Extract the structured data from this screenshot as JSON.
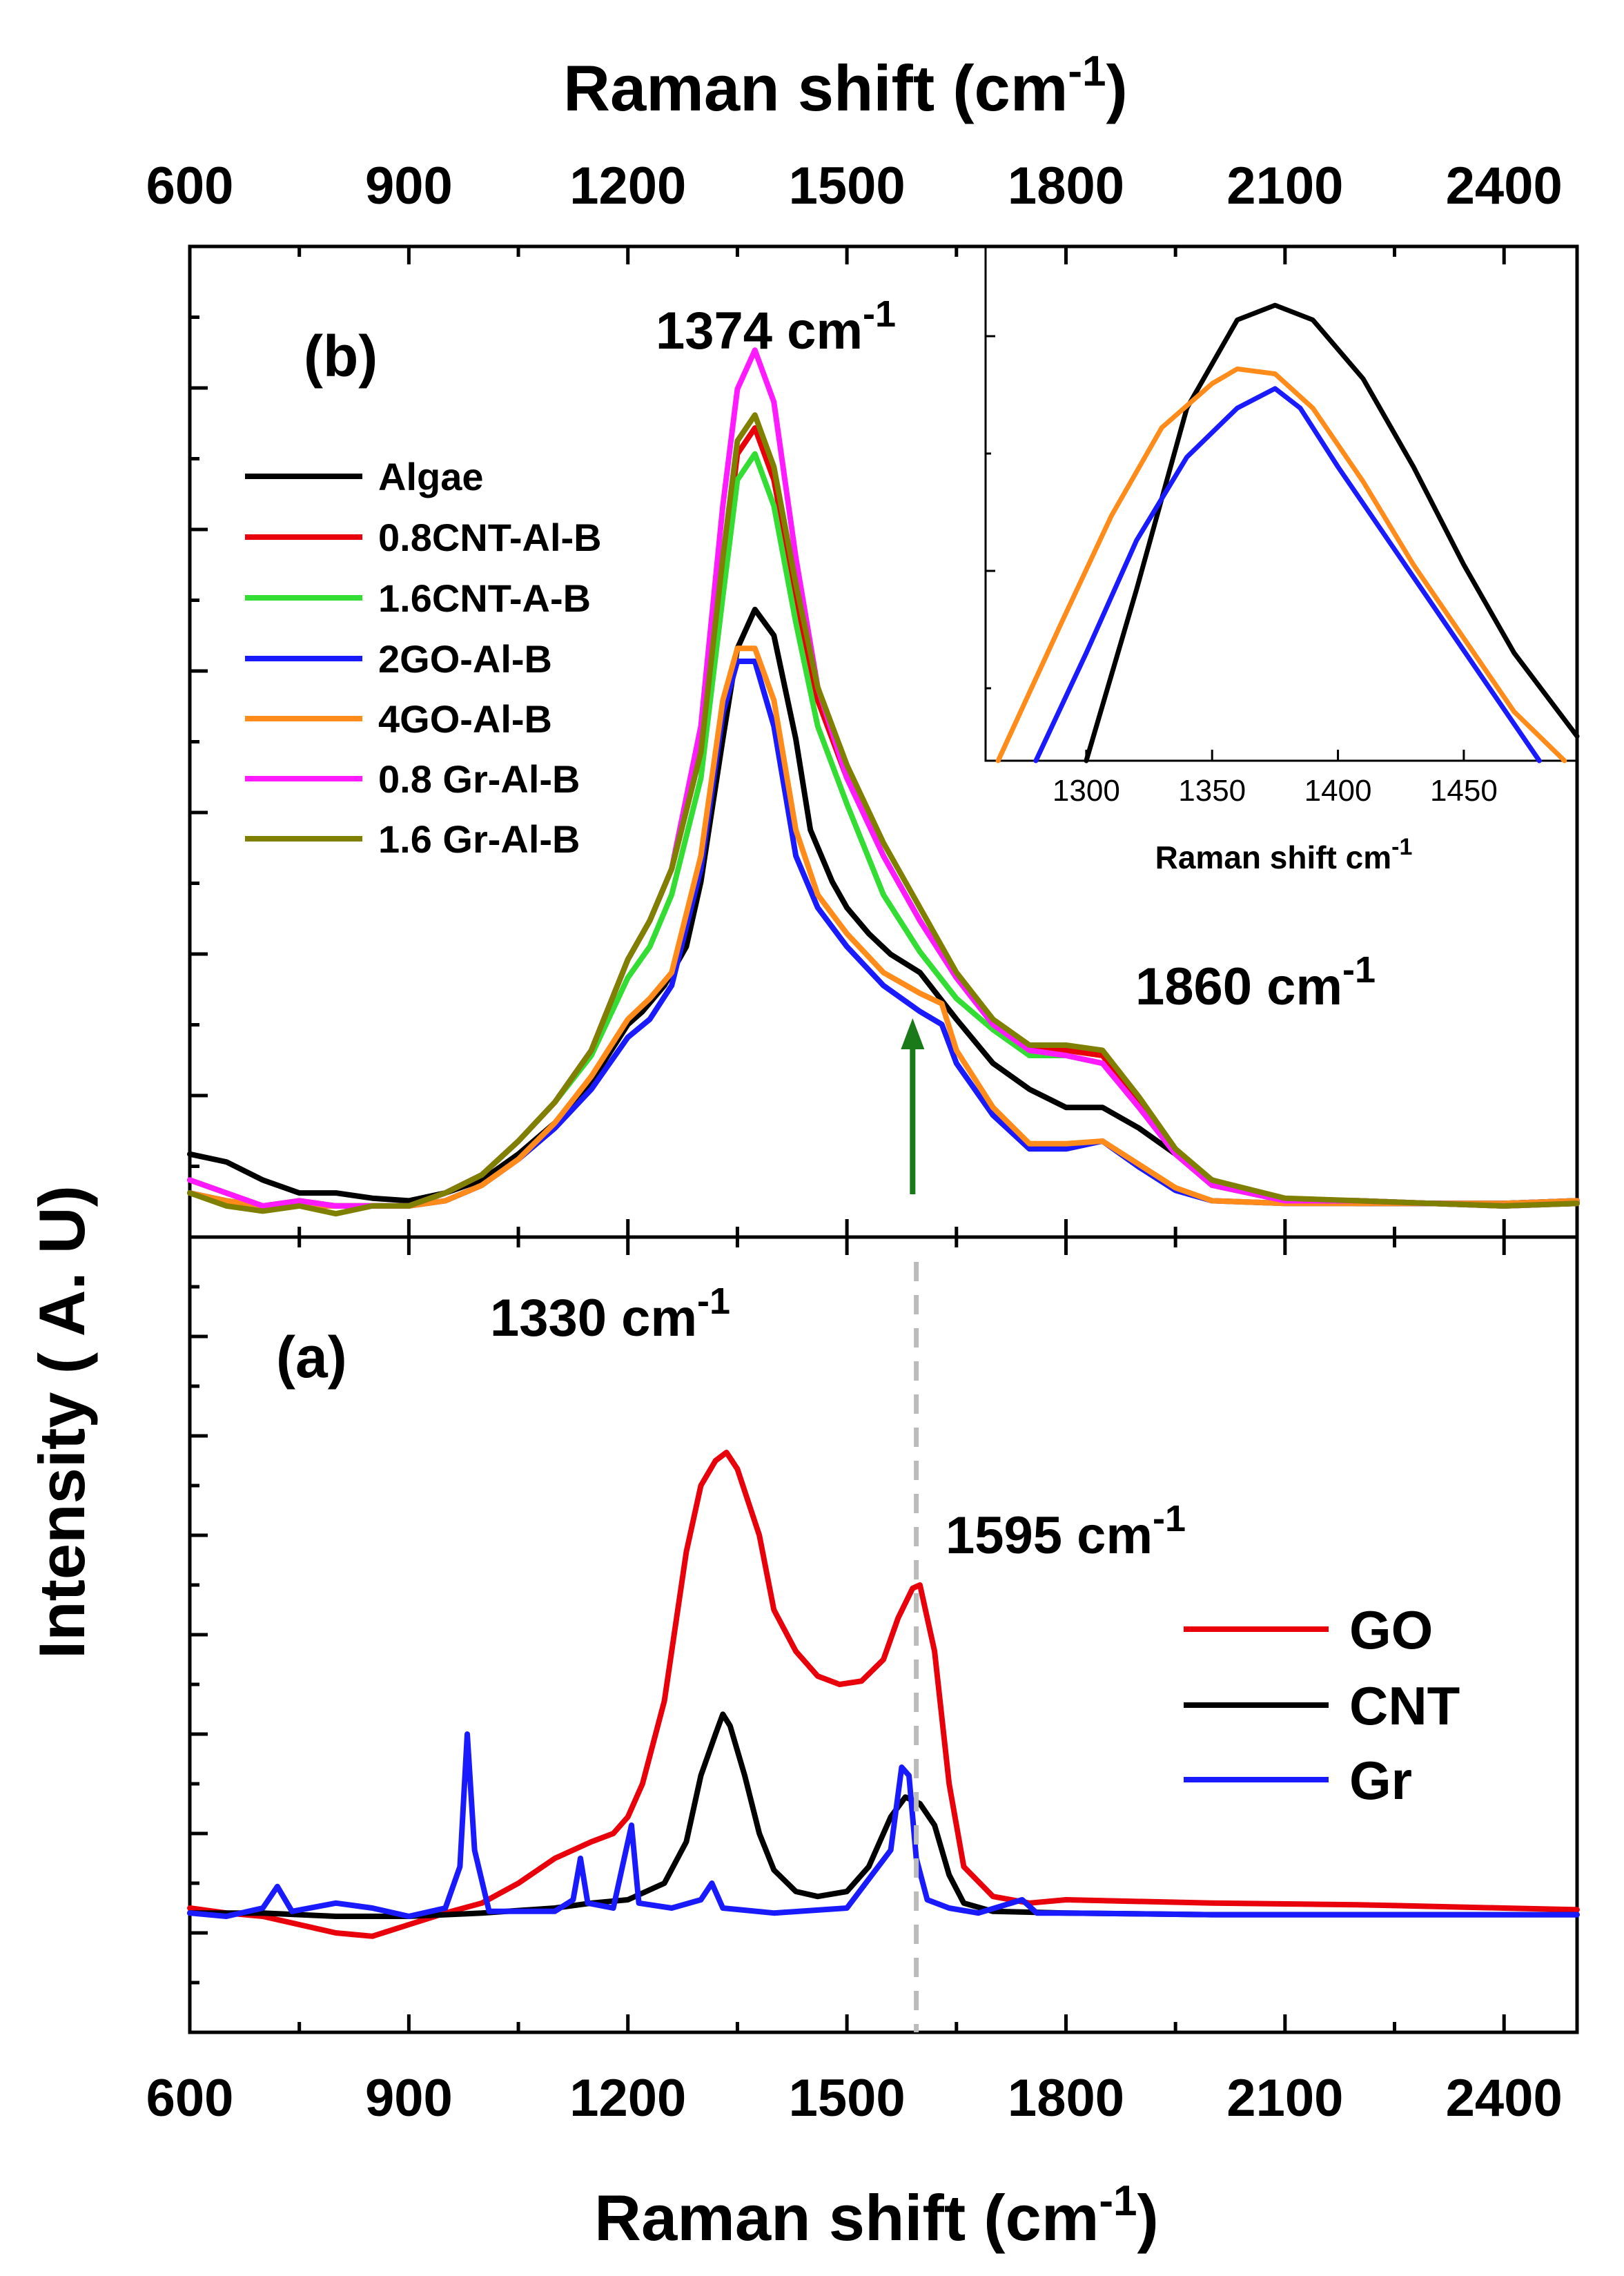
{
  "figure": {
    "y_axis_label": "Intensity ( A. U)",
    "x_axis_label_bottom": "Raman shift (cm",
    "x_axis_label_top": "Raman shift (cm",
    "x_axis_label_sup": "-1",
    "x_axis_label_close": ")"
  },
  "chart_data": [
    {
      "panel": "(b)",
      "type": "line",
      "xlabel": "Raman shift (cm-1)",
      "ylabel": "Intensity ( A. U)",
      "xlim": [
        600,
        2500
      ],
      "xticks": [
        600,
        900,
        1200,
        1500,
        1800,
        2100,
        2400
      ],
      "ylim": [
        -0.12,
        3.7
      ],
      "ytick_labels_shown": false,
      "legend_position": "left",
      "annotations": [
        {
          "text": "1374 cm",
          "sup": "-1",
          "x": 1374
        },
        {
          "text": "1860 cm",
          "sup": "-1",
          "x": 1860
        },
        {
          "type": "arrow",
          "x": 1590,
          "color": "#1a7a1a"
        }
      ],
      "series": [
        {
          "name": "Algae",
          "color": "#000000",
          "x": [
            600,
            650,
            700,
            750,
            800,
            850,
            900,
            950,
            1000,
            1050,
            1100,
            1150,
            1200,
            1220,
            1250,
            1280,
            1300,
            1330,
            1350,
            1374,
            1400,
            1430,
            1450,
            1480,
            1500,
            1530,
            1560,
            1600,
            1650,
            1700,
            1750,
            1800,
            1850,
            1900,
            1950,
            2000,
            2100,
            2200,
            2300,
            2400,
            2500
          ],
          "y": [
            0.2,
            0.17,
            0.1,
            0.05,
            0.05,
            0.03,
            0.02,
            0.05,
            0.1,
            0.2,
            0.32,
            0.48,
            0.7,
            0.75,
            0.85,
            1.0,
            1.25,
            1.8,
            2.15,
            2.3,
            2.2,
            1.8,
            1.45,
            1.25,
            1.15,
            1.05,
            0.97,
            0.9,
            0.72,
            0.55,
            0.45,
            0.38,
            0.38,
            0.3,
            0.2,
            0.1,
            0.02,
            0.01,
            0.01,
            0.01,
            0.02
          ]
        },
        {
          "name": "0.8CNT-Al-B",
          "color": "#e8000b",
          "x": [
            600,
            650,
            700,
            750,
            800,
            850,
            900,
            950,
            1000,
            1050,
            1100,
            1150,
            1200,
            1230,
            1260,
            1300,
            1330,
            1350,
            1374,
            1400,
            1430,
            1460,
            1500,
            1550,
            1600,
            1650,
            1700,
            1750,
            1800,
            1850,
            1900,
            1950,
            2000,
            2100,
            2200,
            2300,
            2400,
            2500
          ],
          "y": [
            0.1,
            0.05,
            0.0,
            0.02,
            0.0,
            0.0,
            0.0,
            0.05,
            0.12,
            0.25,
            0.4,
            0.6,
            0.95,
            1.1,
            1.3,
            1.75,
            2.45,
            2.9,
            3.0,
            2.8,
            2.35,
            1.95,
            1.65,
            1.35,
            1.1,
            0.88,
            0.7,
            0.6,
            0.6,
            0.58,
            0.4,
            0.2,
            0.08,
            0.02,
            0.02,
            0.01,
            0.0,
            0.01
          ]
        },
        {
          "name": "1.6CNT-A-B",
          "color": "#33dd33",
          "x": [
            600,
            650,
            700,
            750,
            800,
            850,
            900,
            950,
            1000,
            1050,
            1100,
            1150,
            1200,
            1230,
            1260,
            1300,
            1330,
            1350,
            1374,
            1400,
            1430,
            1460,
            1500,
            1550,
            1600,
            1650,
            1700,
            1750,
            1800,
            1850,
            1900,
            1950,
            2000,
            2100,
            2200,
            2300,
            2400,
            2500
          ],
          "y": [
            0.1,
            0.05,
            0.0,
            0.02,
            0.0,
            0.0,
            0.0,
            0.05,
            0.12,
            0.25,
            0.4,
            0.58,
            0.88,
            1.0,
            1.2,
            1.65,
            2.35,
            2.8,
            2.9,
            2.7,
            2.25,
            1.85,
            1.55,
            1.2,
            0.98,
            0.8,
            0.68,
            0.58,
            0.58,
            0.55,
            0.38,
            0.2,
            0.08,
            0.02,
            0.02,
            0.01,
            0.0,
            0.01
          ]
        },
        {
          "name": "2GO-Al-B",
          "color": "#1a1aff",
          "x": [
            600,
            650,
            700,
            750,
            800,
            850,
            900,
            950,
            1000,
            1050,
            1100,
            1150,
            1200,
            1230,
            1260,
            1300,
            1330,
            1350,
            1374,
            1400,
            1430,
            1460,
            1500,
            1550,
            1600,
            1630,
            1650,
            1700,
            1750,
            1800,
            1850,
            1900,
            1950,
            2000,
            2100,
            2200,
            2300,
            2400,
            2500
          ],
          "y": [
            0.05,
            0.02,
            0.0,
            0.0,
            0.0,
            0.0,
            0.0,
            0.02,
            0.08,
            0.18,
            0.3,
            0.45,
            0.65,
            0.72,
            0.85,
            1.3,
            1.9,
            2.1,
            2.1,
            1.85,
            1.35,
            1.15,
            1.0,
            0.85,
            0.75,
            0.7,
            0.55,
            0.35,
            0.22,
            0.22,
            0.25,
            0.15,
            0.06,
            0.02,
            0.01,
            0.01,
            0.01,
            0.01,
            0.02
          ]
        },
        {
          "name": "4GO-Al-B",
          "color": "#ff8c1a",
          "x": [
            600,
            650,
            700,
            750,
            800,
            850,
            900,
            950,
            1000,
            1050,
            1100,
            1150,
            1200,
            1230,
            1260,
            1300,
            1330,
            1350,
            1374,
            1400,
            1430,
            1460,
            1500,
            1550,
            1600,
            1630,
            1650,
            1700,
            1750,
            1800,
            1850,
            1900,
            1950,
            2000,
            2100,
            2200,
            2300,
            2400,
            2500
          ],
          "y": [
            0.05,
            0.02,
            0.0,
            0.0,
            0.0,
            0.0,
            0.0,
            0.02,
            0.08,
            0.18,
            0.32,
            0.5,
            0.72,
            0.8,
            0.9,
            1.35,
            1.95,
            2.15,
            2.15,
            1.95,
            1.45,
            1.2,
            1.05,
            0.9,
            0.82,
            0.78,
            0.6,
            0.38,
            0.24,
            0.24,
            0.25,
            0.16,
            0.07,
            0.02,
            0.01,
            0.01,
            0.01,
            0.01,
            0.02
          ]
        },
        {
          "name": "0.8 Gr-Al-B",
          "color": "#ff1aff",
          "x": [
            600,
            650,
            700,
            750,
            800,
            850,
            900,
            950,
            1000,
            1050,
            1100,
            1150,
            1200,
            1230,
            1260,
            1300,
            1330,
            1350,
            1374,
            1400,
            1430,
            1460,
            1500,
            1550,
            1600,
            1650,
            1700,
            1750,
            1800,
            1850,
            1900,
            1950,
            2000,
            2100,
            2200,
            2300,
            2400,
            2500
          ],
          "y": [
            0.1,
            0.05,
            0.0,
            0.02,
            0.0,
            0.0,
            0.0,
            0.05,
            0.12,
            0.25,
            0.4,
            0.6,
            0.95,
            1.1,
            1.3,
            1.85,
            2.7,
            3.15,
            3.3,
            3.1,
            2.5,
            2.0,
            1.65,
            1.35,
            1.1,
            0.88,
            0.7,
            0.6,
            0.58,
            0.55,
            0.38,
            0.2,
            0.08,
            0.02,
            0.02,
            0.01,
            0.0,
            0.01
          ]
        },
        {
          "name": "1.6 Gr-Al-B",
          "color": "#808000",
          "x": [
            600,
            650,
            700,
            750,
            800,
            850,
            900,
            950,
            1000,
            1050,
            1100,
            1150,
            1200,
            1230,
            1260,
            1300,
            1330,
            1350,
            1374,
            1400,
            1430,
            1460,
            1500,
            1550,
            1600,
            1650,
            1700,
            1750,
            1800,
            1850,
            1900,
            1950,
            2000,
            2100,
            2200,
            2300,
            2400,
            2500
          ],
          "y": [
            0.05,
            0.0,
            -0.02,
            0.0,
            -0.03,
            0.0,
            0.0,
            0.05,
            0.12,
            0.25,
            0.4,
            0.6,
            0.95,
            1.1,
            1.3,
            1.75,
            2.5,
            2.95,
            3.05,
            2.85,
            2.4,
            2.0,
            1.7,
            1.4,
            1.15,
            0.9,
            0.72,
            0.62,
            0.62,
            0.6,
            0.42,
            0.22,
            0.1,
            0.03,
            0.02,
            0.01,
            0.0,
            0.01
          ]
        }
      ]
    },
    {
      "panel": "(a)",
      "type": "line",
      "xlabel": "Raman shift (cm-1)",
      "ylabel": "Intensity ( A. U)",
      "xlim": [
        600,
        2500
      ],
      "xticks": [
        600,
        900,
        1200,
        1500,
        1800,
        2100,
        2400
      ],
      "ylim": [
        -0.7,
        4.1
      ],
      "ytick_labels_shown": false,
      "legend_position": "right",
      "annotations": [
        {
          "text": "1330 cm",
          "sup": "-1",
          "x": 1330
        },
        {
          "text": "1595 cm",
          "sup": "-1",
          "x": 1595
        },
        {
          "type": "dashed-line",
          "x": 1595,
          "color": "#bbbbbb"
        }
      ],
      "series": [
        {
          "name": "GO",
          "color": "#e8000b",
          "x": [
            600,
            650,
            700,
            750,
            800,
            850,
            900,
            950,
            1000,
            1050,
            1100,
            1150,
            1180,
            1200,
            1220,
            1250,
            1280,
            1300,
            1320,
            1335,
            1350,
            1380,
            1400,
            1430,
            1460,
            1490,
            1520,
            1550,
            1570,
            1590,
            1600,
            1620,
            1640,
            1660,
            1700,
            1750,
            1800,
            2000,
            2200,
            2400,
            2500
          ],
          "y": [
            0.05,
            0.02,
            0.0,
            -0.05,
            -0.1,
            -0.12,
            -0.05,
            0.02,
            0.08,
            0.2,
            0.35,
            0.45,
            0.5,
            0.6,
            0.8,
            1.3,
            2.2,
            2.6,
            2.75,
            2.8,
            2.7,
            2.3,
            1.85,
            1.6,
            1.45,
            1.4,
            1.42,
            1.55,
            1.8,
            1.98,
            2.0,
            1.6,
            0.8,
            0.3,
            0.12,
            0.08,
            0.1,
            0.08,
            0.07,
            0.05,
            0.04
          ]
        },
        {
          "name": "CNT",
          "color": "#000000",
          "x": [
            600,
            700,
            800,
            900,
            1000,
            1100,
            1150,
            1200,
            1250,
            1280,
            1300,
            1320,
            1330,
            1340,
            1360,
            1380,
            1400,
            1430,
            1460,
            1500,
            1530,
            1560,
            1580,
            1600,
            1620,
            1640,
            1660,
            1700,
            1800,
            2000,
            2200,
            2400,
            2500
          ],
          "y": [
            0.02,
            0.02,
            0.0,
            0.0,
            0.02,
            0.05,
            0.08,
            0.1,
            0.2,
            0.45,
            0.85,
            1.1,
            1.22,
            1.15,
            0.85,
            0.5,
            0.28,
            0.15,
            0.12,
            0.15,
            0.3,
            0.6,
            0.72,
            0.68,
            0.55,
            0.25,
            0.08,
            0.03,
            0.02,
            0.01,
            0.01,
            0.01,
            0.01
          ]
        },
        {
          "name": "Gr",
          "color": "#1a1aff",
          "x": [
            600,
            650,
            700,
            720,
            740,
            800,
            850,
            900,
            950,
            970,
            980,
            990,
            1010,
            1100,
            1125,
            1135,
            1145,
            1180,
            1195,
            1205,
            1215,
            1260,
            1300,
            1315,
            1330,
            1400,
            1500,
            1560,
            1575,
            1585,
            1595,
            1610,
            1640,
            1680,
            1740,
            1760,
            1800,
            2000,
            2200,
            2400,
            2500
          ],
          "y": [
            0.02,
            0.0,
            0.05,
            0.18,
            0.03,
            0.08,
            0.05,
            0.0,
            0.05,
            0.3,
            1.1,
            0.4,
            0.03,
            0.03,
            0.1,
            0.35,
            0.08,
            0.05,
            0.35,
            0.55,
            0.08,
            0.05,
            0.1,
            0.2,
            0.05,
            0.02,
            0.05,
            0.4,
            0.9,
            0.85,
            0.35,
            0.1,
            0.05,
            0.02,
            0.1,
            0.02,
            0.02,
            0.01,
            0.01,
            0.01,
            0.01
          ]
        }
      ]
    },
    {
      "panel": "inset",
      "type": "line",
      "xlabel": "Raman shift cm-1",
      "xlim": [
        1260,
        1495
      ],
      "xticks": [
        1300,
        1350,
        1400,
        1450
      ],
      "ylim": [
        0.0,
        1.05
      ],
      "ytick_labels_shown": false,
      "series": [
        {
          "name": "Algae",
          "color": "#000000",
          "x": [
            1300,
            1320,
            1340,
            1360,
            1375,
            1390,
            1410,
            1430,
            1450,
            1470,
            1495
          ],
          "y": [
            0.0,
            0.35,
            0.72,
            0.9,
            0.93,
            0.9,
            0.78,
            0.6,
            0.4,
            0.22,
            0.05
          ]
        },
        {
          "name": "4GO-Al-B",
          "color": "#ff8c1a",
          "x": [
            1265,
            1290,
            1310,
            1330,
            1350,
            1360,
            1375,
            1390,
            1410,
            1430,
            1450,
            1470,
            1490
          ],
          "y": [
            0.0,
            0.28,
            0.5,
            0.68,
            0.77,
            0.8,
            0.79,
            0.72,
            0.57,
            0.4,
            0.25,
            0.1,
            0.0
          ]
        },
        {
          "name": "2GO-Al-B",
          "color": "#1a1aff",
          "x": [
            1280,
            1300,
            1320,
            1340,
            1360,
            1375,
            1385,
            1400,
            1420,
            1440,
            1460,
            1480
          ],
          "y": [
            0.0,
            0.22,
            0.45,
            0.62,
            0.72,
            0.76,
            0.72,
            0.6,
            0.45,
            0.3,
            0.15,
            0.0
          ]
        }
      ]
    }
  ],
  "legend_b": [
    "Algae",
    "0.8CNT-Al-B",
    "1.6CNT-A-B",
    "2GO-Al-B",
    "4GO-Al-B",
    "0.8 Gr-Al-B",
    "1.6 Gr-Al-B"
  ],
  "legend_a": [
    "GO",
    "CNT",
    "Gr"
  ],
  "labels": {
    "panel_b": "(b)",
    "panel_a": "(a)",
    "anno_1374": "1374 cm",
    "anno_1860": "1860 cm",
    "anno_1330": "1330 cm",
    "anno_1595": "1595 cm",
    "sup": "-1",
    "inset_xlabel": "Raman shift cm",
    "inset_xlabel_sup": "-1"
  }
}
